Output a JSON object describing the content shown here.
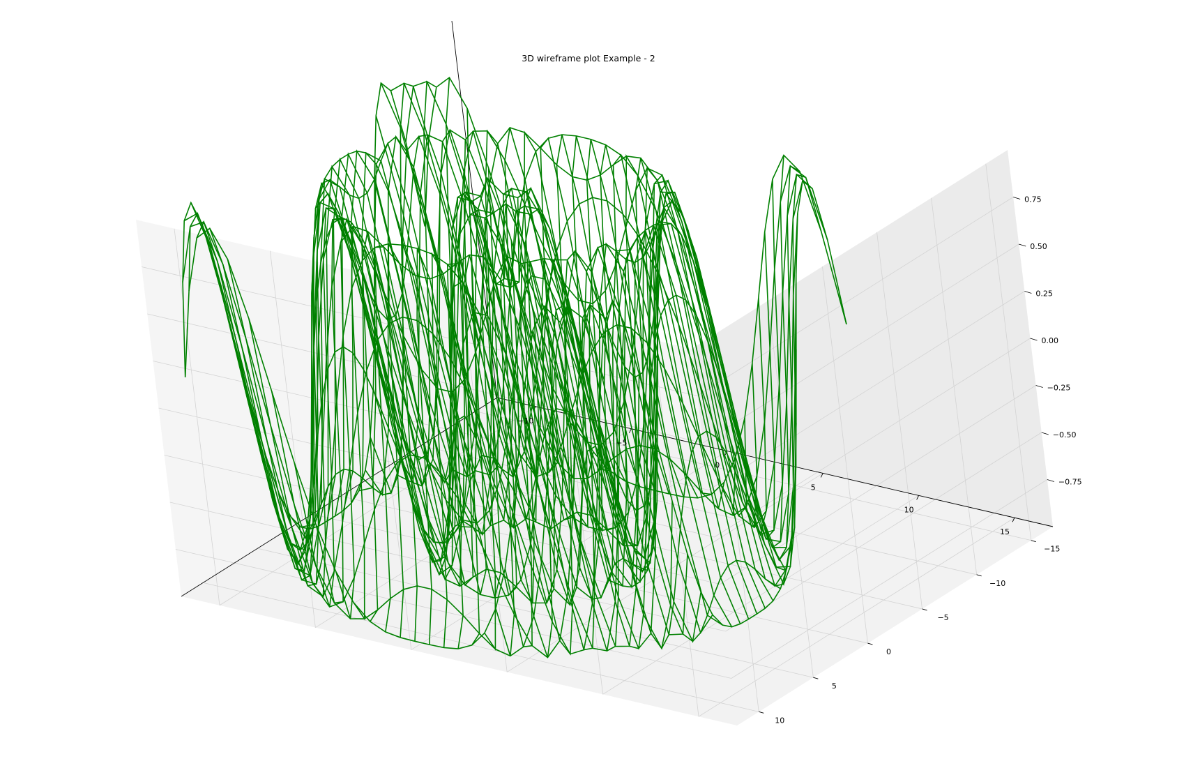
{
  "chart_data": {
    "type": "wireframe",
    "title": "3D wireframe plot Example - 2",
    "surface": {
      "function": "sin(sqrt(x^2 + y^2))",
      "x_range": [
        -11,
        11
      ],
      "y_range": [
        -11,
        11
      ],
      "x_samples": 30,
      "y_samples": 30
    },
    "color": "#008000",
    "axes": {
      "x": {
        "ticks": [
          -10,
          -5,
          0,
          5,
          10,
          15
        ],
        "tick_labels": [
          "−10",
          "−5",
          "0",
          "5",
          "10",
          "15"
        ],
        "lim": [
          -12,
          17
        ]
      },
      "y": {
        "ticks": [
          -15,
          -10,
          -5,
          0,
          5,
          10
        ],
        "tick_labels": [
          "−15",
          "−10",
          "−5",
          "0",
          "5",
          "10"
        ],
        "lim": [
          -17,
          12
        ]
      },
      "z": {
        "ticks": [
          -0.75,
          -0.5,
          -0.25,
          0,
          0.25,
          0.5,
          0.75
        ],
        "tick_labels": [
          "−0.75",
          "−0.50",
          "−0.25",
          "0.00",
          "0.25",
          "0.50",
          "0.75"
        ],
        "lim": [
          -1,
          1
        ]
      }
    },
    "grid": true,
    "pane_colors": {
      "floor": "#f2f2f2",
      "back": "#ebebeb",
      "side": "#f5f5f5"
    }
  }
}
